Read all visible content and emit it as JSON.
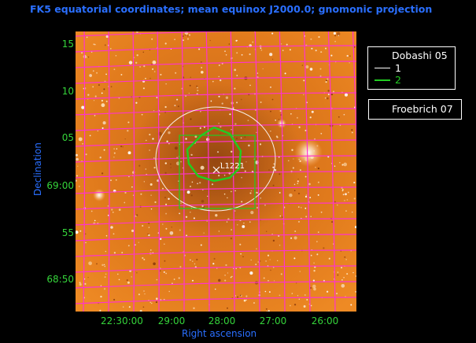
{
  "title": "FK5 equatorial coordinates; mean equinox J2000.0; gnomonic projection",
  "xlabel": "Right ascension",
  "ylabel": "Declination",
  "y_ticks": [
    "15",
    "10",
    "05",
    "69:00",
    "55",
    "68:50"
  ],
  "x_ticks": [
    "22:30:00",
    "29:00",
    "28:00",
    "27:00",
    "26:00"
  ],
  "legend_dobashi": {
    "title": "Dobashi 05",
    "items": [
      {
        "label": "1",
        "color": "#ffffff"
      },
      {
        "label": "2",
        "color": "#22cc22"
      }
    ]
  },
  "legend_froebrich": {
    "title": "Froebrich 07"
  },
  "marker_label": "L1221",
  "colors": {
    "title": "#2a6fff",
    "tick": "#35d43a",
    "grid": "#ff33cc",
    "image": "#e07a1c"
  }
}
